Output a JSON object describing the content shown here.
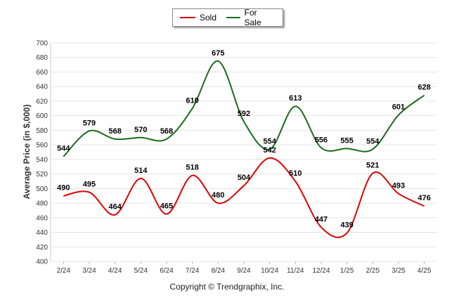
{
  "chart_data": {
    "type": "line",
    "categories": [
      "2/24",
      "3/24",
      "4/24",
      "5/24",
      "6/24",
      "7/24",
      "8/24",
      "9/24",
      "10/24",
      "11/24",
      "12/24",
      "1/25",
      "2/25",
      "3/25",
      "4/25"
    ],
    "series": [
      {
        "name": "Sold",
        "color": "#e00000",
        "values": [
          490,
          495,
          464,
          514,
          465,
          518,
          480,
          504,
          542,
          510,
          447,
          439,
          521,
          493,
          476
        ]
      },
      {
        "name": "For Sale",
        "color": "#1a6b1a",
        "values": [
          544,
          579,
          568,
          570,
          568,
          610,
          675,
          592,
          554,
          613,
          556,
          555,
          554,
          601,
          628
        ]
      }
    ],
    "ylabel": "Average Price (in $,000)",
    "xlabel": "",
    "ylim": [
      400,
      700
    ],
    "yticks": [
      400,
      420,
      440,
      460,
      480,
      500,
      520,
      540,
      560,
      580,
      600,
      620,
      640,
      660,
      680,
      700
    ],
    "grid": true,
    "legend": "top-center"
  },
  "footer": {
    "copyright": "Copyright © Trendgraphix, Inc."
  }
}
